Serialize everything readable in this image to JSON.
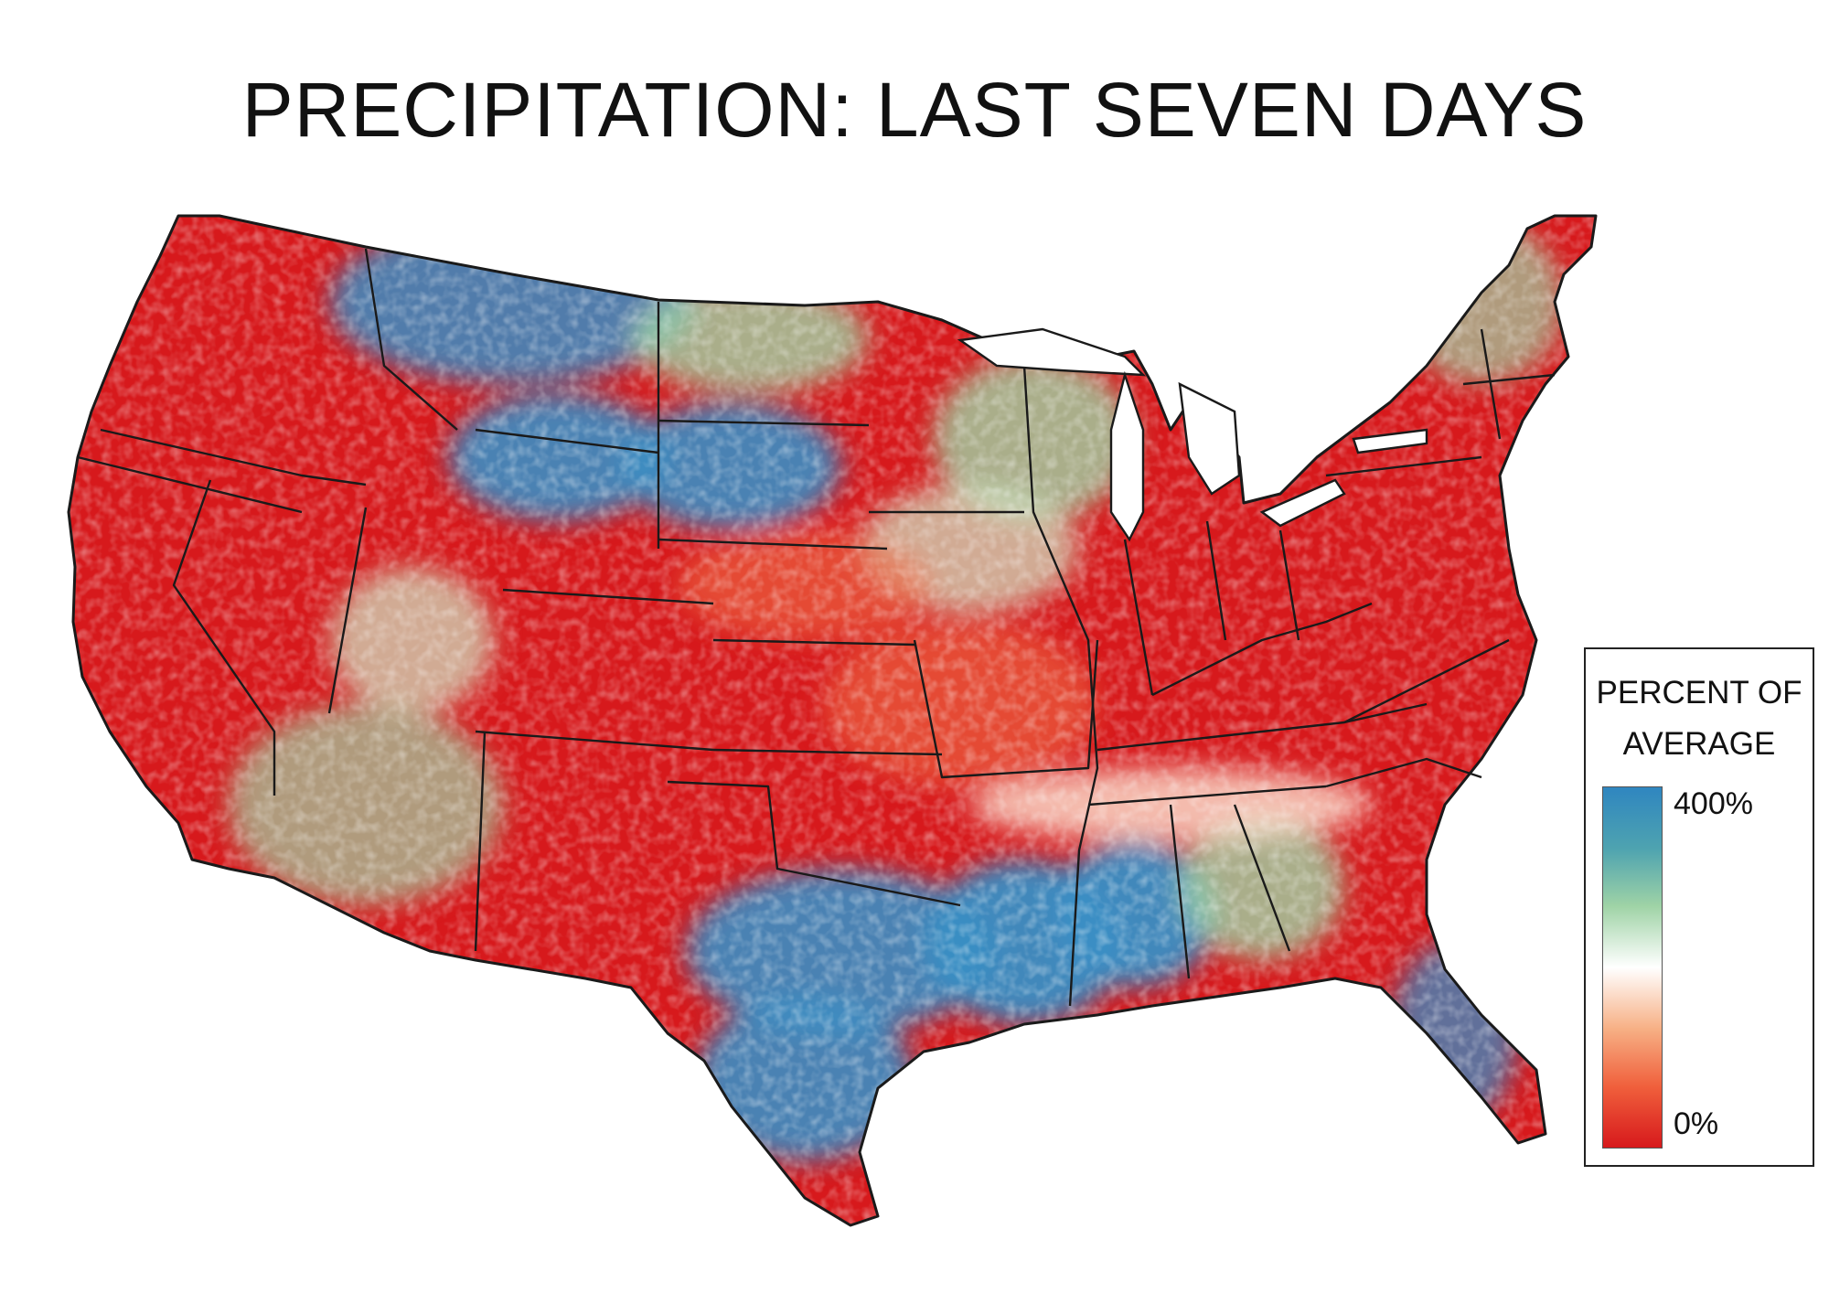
{
  "title": "PRECIPITATION: LAST SEVEN DAYS",
  "legend": {
    "title_line1": "PERCENT OF",
    "title_line2": "AVERAGE",
    "max_label": "400%",
    "min_label": "0%",
    "max_value": 400,
    "min_value": 0,
    "unit": "%",
    "color_stops": [
      "#2f86c0",
      "#4ea3b0",
      "#9fd3a6",
      "#ffffff",
      "#f7b085",
      "#f0603c",
      "#d7191c"
    ]
  },
  "map_palette": {
    "dry": "#d7191c",
    "below": "#ef6b45",
    "near": "#fbe3d2",
    "above": "#9fd3a6",
    "wet": "#3a8ec4",
    "borders": "#1a1a1a"
  }
}
